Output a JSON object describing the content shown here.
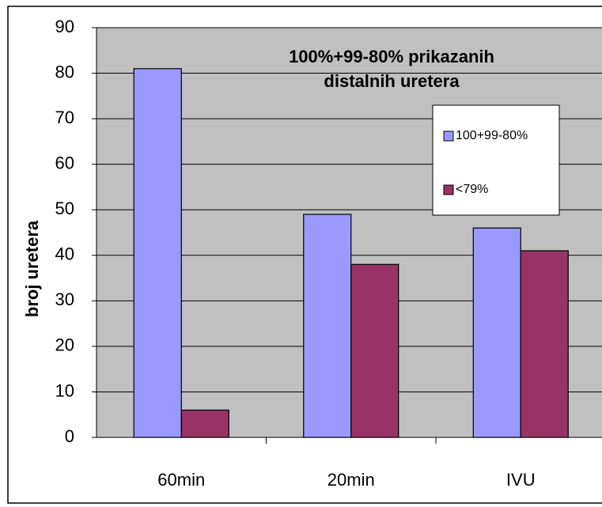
{
  "chart_data": {
    "type": "bar",
    "title": "100%+99-80% prikazanih distalnih uretera",
    "y_label": "broj uretera",
    "categories": [
      "60min",
      "20min",
      "IVU"
    ],
    "series": [
      {
        "name": "100+99-80%",
        "color": "#9999ff",
        "values": [
          81,
          49,
          46
        ]
      },
      {
        "name": "<79%",
        "color": "#993366",
        "values": [
          6,
          38,
          41
        ]
      }
    ],
    "ylim": [
      0,
      90
    ],
    "yticks": [
      0,
      10,
      20,
      30,
      40,
      50,
      60,
      70,
      80,
      90
    ],
    "grid": true,
    "legend": "upper right",
    "plot_background": "#c0c0c0"
  }
}
